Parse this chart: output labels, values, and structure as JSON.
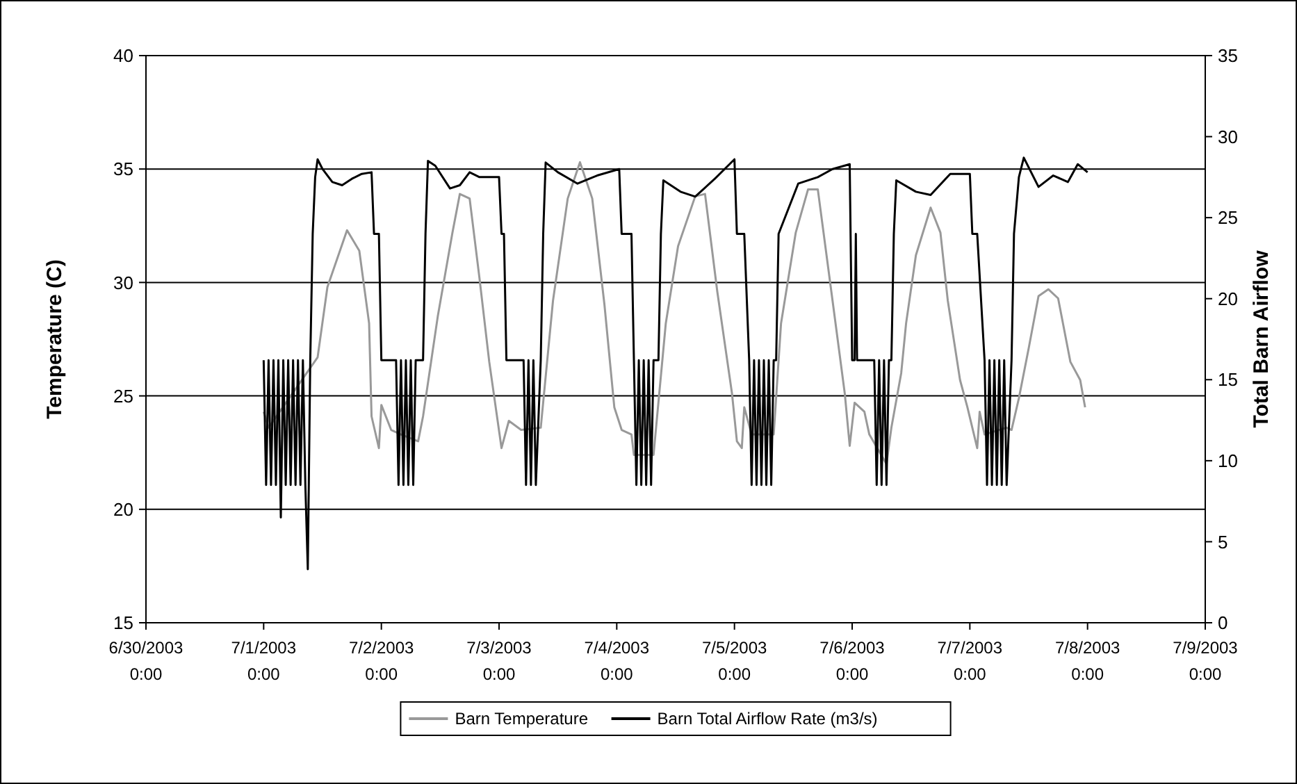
{
  "chart_data": {
    "type": "line",
    "xlabel": null,
    "ylabel": "Temperature (C)",
    "y2label": "Total Barn Airflow",
    "xlim": [
      "2003-06-30T00:00",
      "2003-07-09T00:00"
    ],
    "xticks": [
      {
        "value": "2003-06-30T00:00",
        "label": "6/30/2003 0:00"
      },
      {
        "value": "2003-07-01T00:00",
        "label": "7/1/2003 0:00"
      },
      {
        "value": "2003-07-02T00:00",
        "label": "7/2/2003 0:00"
      },
      {
        "value": "2003-07-03T00:00",
        "label": "7/3/2003 0:00"
      },
      {
        "value": "2003-07-04T00:00",
        "label": "7/4/2003 0:00"
      },
      {
        "value": "2003-07-05T00:00",
        "label": "7/5/2003 0:00"
      },
      {
        "value": "2003-07-06T00:00",
        "label": "7/6/2003 0:00"
      },
      {
        "value": "2003-07-07T00:00",
        "label": "7/7/2003 0:00"
      },
      {
        "value": "2003-07-08T00:00",
        "label": "7/8/2003 0:00"
      },
      {
        "value": "2003-07-09T00:00",
        "label": "7/9/2003 0:00"
      }
    ],
    "ylim": [
      15,
      40
    ],
    "yticks": [
      15,
      20,
      25,
      30,
      35,
      40
    ],
    "y2lim": [
      0,
      35
    ],
    "y2ticks": [
      0,
      5,
      10,
      15,
      20,
      25,
      30,
      35
    ],
    "grid": "y",
    "legend": "bottom",
    "marker": "none",
    "line_style": "solid",
    "series": [
      {
        "name": "Barn Temperature",
        "color": "#999999",
        "x": [
          "2003-07-01T00:00",
          "2003-07-01T01:00",
          "2003-07-01T11:00",
          "2003-07-01T13:00",
          "2003-07-01T17:00",
          "2003-07-01T19:30",
          "2003-07-01T21:30",
          "2003-07-01T22:00",
          "2003-07-01T23:30",
          "2003-07-02T00:00",
          "2003-07-02T02:00",
          "2003-07-02T04:00",
          "2003-07-02T07:30",
          "2003-07-02T08:30",
          "2003-07-02T11:30",
          "2003-07-02T14:30",
          "2003-07-02T16:00",
          "2003-07-02T18:00",
          "2003-07-02T20:00",
          "2003-07-02T22:00",
          "2003-07-03T00:30",
          "2003-07-03T02:00",
          "2003-07-03T04:30",
          "2003-07-03T08:30",
          "2003-07-03T11:00",
          "2003-07-03T14:00",
          "2003-07-03T16:30",
          "2003-07-03T19:00",
          "2003-07-03T21:30",
          "2003-07-03T23:30",
          "2003-07-04T01:00",
          "2003-07-04T03:00",
          "2003-07-04T03:30",
          "2003-07-04T07:30",
          "2003-07-04T10:00",
          "2003-07-04T12:30",
          "2003-07-04T16:00",
          "2003-07-04T18:00",
          "2003-07-04T20:30",
          "2003-07-04T23:30",
          "2003-07-05T00:30",
          "2003-07-05T01:30",
          "2003-07-05T02:00",
          "2003-07-05T03:30",
          "2003-07-05T08:00",
          "2003-07-05T09:30",
          "2003-07-05T12:30",
          "2003-07-05T15:00",
          "2003-07-05T17:00",
          "2003-07-05T20:00",
          "2003-07-05T22:30",
          "2003-07-05T23:30",
          "2003-07-06T00:30",
          "2003-07-06T02:30",
          "2003-07-06T03:30",
          "2003-07-06T07:00",
          "2003-07-06T08:00",
          "2003-07-06T10:00",
          "2003-07-06T11:00",
          "2003-07-06T13:00",
          "2003-07-06T16:00",
          "2003-07-06T18:00",
          "2003-07-06T19:30",
          "2003-07-06T22:00",
          "2003-07-06T23:30",
          "2003-07-07T01:30",
          "2003-07-07T02:00",
          "2003-07-07T03:00",
          "2003-07-07T07:30",
          "2003-07-07T08:30",
          "2003-07-07T10:00",
          "2003-07-07T12:00",
          "2003-07-07T14:00",
          "2003-07-07T16:00",
          "2003-07-07T18:00",
          "2003-07-07T20:30",
          "2003-07-07T22:30",
          "2003-07-07T23:30"
        ],
        "values": [
          24.3,
          23.6,
          26.7,
          29.8,
          32.3,
          31.4,
          28.2,
          24.1,
          22.7,
          24.6,
          23.5,
          23.3,
          23.0,
          24.1,
          28.5,
          32.2,
          33.9,
          33.7,
          30.2,
          26.5,
          22.7,
          23.9,
          23.5,
          23.6,
          29.2,
          33.7,
          35.3,
          33.7,
          29.0,
          24.5,
          23.5,
          23.3,
          22.4,
          22.4,
          28.2,
          31.6,
          33.8,
          33.9,
          29.6,
          25.1,
          23.0,
          22.7,
          24.5,
          23.3,
          23.3,
          28.2,
          32.2,
          34.1,
          34.1,
          29.2,
          25.1,
          22.8,
          24.7,
          24.3,
          23.3,
          22.0,
          23.6,
          26.0,
          28.2,
          31.2,
          33.3,
          32.2,
          29.2,
          25.7,
          24.5,
          22.7,
          24.3,
          23.3,
          23.6,
          23.5,
          24.9,
          27.1,
          29.4,
          29.7,
          29.3,
          26.5,
          25.7,
          24.5
        ]
      },
      {
        "name": "Barn Total Airflow Rate (m3/s)",
        "color": "#000000",
        "axis": "y2",
        "x": [
          "2003-07-01T00:00",
          "2003-07-01T00:30",
          "2003-07-01T01:00",
          "2003-07-01T01:30",
          "2003-07-01T02:00",
          "2003-07-01T02:30",
          "2003-07-01T03:00",
          "2003-07-01T03:30",
          "2003-07-01T04:00",
          "2003-07-01T04:30",
          "2003-07-01T05:00",
          "2003-07-01T05:30",
          "2003-07-01T06:00",
          "2003-07-01T06:30",
          "2003-07-01T07:00",
          "2003-07-01T07:30",
          "2003-07-01T08:00",
          "2003-07-01T08:30",
          "2003-07-01T09:00",
          "2003-07-01T09:30",
          "2003-07-01T10:00",
          "2003-07-01T10:30",
          "2003-07-01T11:00",
          "2003-07-01T12:00",
          "2003-07-01T14:00",
          "2003-07-01T16:00",
          "2003-07-01T18:00",
          "2003-07-01T20:00",
          "2003-07-01T22:00",
          "2003-07-01T22:30",
          "2003-07-01T23:30",
          "2003-07-02T00:00",
          "2003-07-02T03:00",
          "2003-07-02T03:30",
          "2003-07-02T04:00",
          "2003-07-02T04:30",
          "2003-07-02T05:00",
          "2003-07-02T05:30",
          "2003-07-02T06:00",
          "2003-07-02T06:30",
          "2003-07-02T07:00",
          "2003-07-02T08:30",
          "2003-07-02T09:00",
          "2003-07-02T09:30",
          "2003-07-02T11:00",
          "2003-07-02T14:00",
          "2003-07-02T16:00",
          "2003-07-02T18:00",
          "2003-07-02T20:00",
          "2003-07-03T00:00",
          "2003-07-03T00:30",
          "2003-07-03T01:00",
          "2003-07-03T01:30",
          "2003-07-03T05:00",
          "2003-07-03T05:30",
          "2003-07-03T06:00",
          "2003-07-03T06:30",
          "2003-07-03T07:00",
          "2003-07-03T07:30",
          "2003-07-03T08:30",
          "2003-07-03T09:00",
          "2003-07-03T09:30",
          "2003-07-03T12:00",
          "2003-07-03T16:00",
          "2003-07-03T20:00",
          "2003-07-04T00:30",
          "2003-07-04T01:00",
          "2003-07-04T03:00",
          "2003-07-04T03:30",
          "2003-07-04T04:00",
          "2003-07-04T04:30",
          "2003-07-04T05:00",
          "2003-07-04T05:30",
          "2003-07-04T06:00",
          "2003-07-04T06:30",
          "2003-07-04T07:00",
          "2003-07-04T07:30",
          "2003-07-04T08:30",
          "2003-07-04T09:00",
          "2003-07-04T09:30",
          "2003-07-04T13:00",
          "2003-07-04T16:00",
          "2003-07-04T20:00",
          "2003-07-05T00:00",
          "2003-07-05T00:30",
          "2003-07-05T02:00",
          "2003-07-05T03:00",
          "2003-07-05T03:30",
          "2003-07-05T04:00",
          "2003-07-05T04:30",
          "2003-07-05T05:00",
          "2003-07-05T05:30",
          "2003-07-05T06:00",
          "2003-07-05T06:30",
          "2003-07-05T07:00",
          "2003-07-05T07:30",
          "2003-07-05T08:00",
          "2003-07-05T08:30",
          "2003-07-05T09:00",
          "2003-07-05T13:00",
          "2003-07-05T17:00",
          "2003-07-05T20:00",
          "2003-07-05T23:30",
          "2003-07-06T00:00",
          "2003-07-06T00:30",
          "2003-07-06T00:45",
          "2003-07-06T01:00",
          "2003-07-06T04:30",
          "2003-07-06T05:00",
          "2003-07-06T05:30",
          "2003-07-06T06:00",
          "2003-07-06T06:30",
          "2003-07-06T07:00",
          "2003-07-06T07:30",
          "2003-07-06T08:00",
          "2003-07-06T08:30",
          "2003-07-06T09:00",
          "2003-07-06T13:00",
          "2003-07-06T16:00",
          "2003-07-06T20:00",
          "2003-07-07T00:00",
          "2003-07-07T00:30",
          "2003-07-07T01:30",
          "2003-07-07T03:00",
          "2003-07-07T03:30",
          "2003-07-07T04:00",
          "2003-07-07T04:30",
          "2003-07-07T05:00",
          "2003-07-07T05:30",
          "2003-07-07T06:00",
          "2003-07-07T06:30",
          "2003-07-07T07:00",
          "2003-07-07T07:30",
          "2003-07-07T08:30",
          "2003-07-07T09:00",
          "2003-07-07T10:00",
          "2003-07-07T11:00",
          "2003-07-07T14:00",
          "2003-07-07T17:00",
          "2003-07-07T20:00",
          "2003-07-07T22:00",
          "2003-07-08T00:00"
        ],
        "values": [
          16.2,
          8.5,
          16.2,
          8.5,
          16.2,
          8.5,
          16.2,
          6.5,
          16.2,
          8.5,
          16.2,
          8.5,
          16.2,
          8.5,
          16.2,
          8.5,
          16.2,
          8.5,
          3.3,
          16.2,
          24.0,
          27.5,
          28.6,
          28.0,
          27.2,
          27.0,
          27.4,
          27.7,
          27.8,
          24.0,
          24.0,
          16.2,
          16.2,
          8.5,
          16.2,
          8.5,
          16.2,
          8.5,
          16.2,
          8.5,
          16.2,
          16.2,
          24.0,
          28.5,
          28.2,
          26.8,
          27.0,
          27.8,
          27.5,
          27.5,
          24.0,
          24.0,
          16.2,
          16.2,
          8.5,
          16.2,
          8.5,
          16.2,
          8.5,
          16.2,
          24.0,
          28.4,
          27.8,
          27.1,
          27.6,
          28.0,
          24.0,
          24.0,
          16.2,
          8.5,
          16.2,
          8.5,
          16.2,
          8.5,
          16.2,
          8.5,
          16.2,
          16.2,
          24.0,
          27.3,
          26.6,
          26.3,
          27.4,
          28.6,
          24.0,
          24.0,
          16.2,
          8.5,
          16.2,
          8.5,
          16.2,
          8.5,
          16.2,
          8.5,
          16.2,
          8.5,
          16.2,
          16.2,
          24.0,
          27.1,
          27.5,
          28.0,
          28.3,
          16.2,
          16.2,
          24.0,
          16.2,
          16.2,
          8.5,
          16.2,
          8.5,
          16.2,
          8.5,
          16.2,
          16.2,
          24.0,
          27.3,
          26.6,
          26.4,
          27.7,
          27.7,
          24.0,
          24.0,
          16.2,
          8.5,
          16.2,
          8.5,
          16.2,
          8.5,
          16.2,
          8.5,
          16.2,
          8.5,
          16.2,
          24.0,
          27.5,
          28.7,
          26.9,
          27.6,
          27.2,
          28.3,
          27.8
        ]
      }
    ]
  }
}
